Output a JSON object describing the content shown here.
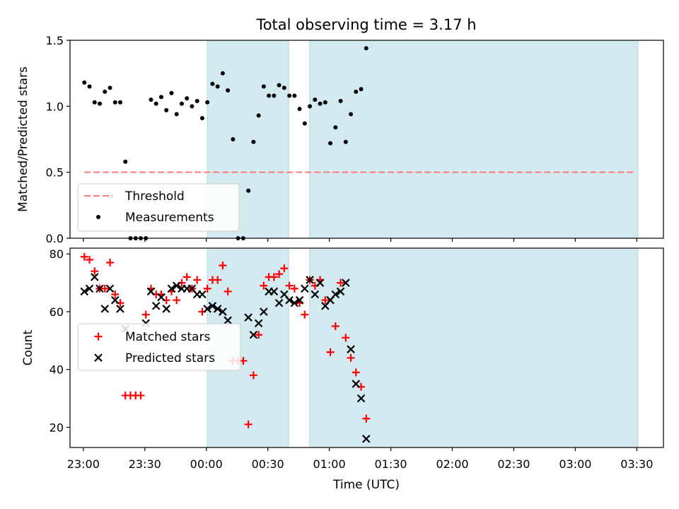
{
  "chart_data": {
    "type": "scatter",
    "title": "Total observing time = 3.17 h",
    "xlabel": "Time (UTC)",
    "x_tick_labels": [
      "23:00",
      "23:30",
      "00:00",
      "00:30",
      "01:00",
      "01:30",
      "02:00",
      "02:30",
      "03:00",
      "03:30"
    ],
    "x_tick_minutes": [
      0,
      30,
      60,
      90,
      120,
      150,
      180,
      210,
      240,
      270
    ],
    "xlim_minutes": [
      -6.5,
      283
    ],
    "shaded_intervals_minutes": [
      [
        60.5,
        100.2
      ],
      [
        110.4,
        270.5
      ]
    ],
    "panels": [
      {
        "name": "ratio",
        "ylabel": "Matched/Predicted stars",
        "ylim": [
          0,
          1.5
        ],
        "yticks": [
          0.0,
          0.5,
          1.0,
          1.5
        ],
        "ytick_labels": [
          "0.0",
          "0.5",
          "1.0",
          "1.5"
        ],
        "legend": {
          "location": "lower left",
          "entries": [
            "Threshold",
            "Measurements"
          ]
        },
        "threshold": {
          "label": "Threshold",
          "value": 0.5,
          "x_range_minutes": [
            0.5,
            269.5
          ],
          "color": "#ff7b7b"
        },
        "series": [
          {
            "name": "Measurements",
            "color": "#000000",
            "marker": "dot",
            "points": [
              [
                0.5,
                1.18
              ],
              [
                3.0,
                1.15
              ],
              [
                5.5,
                1.03
              ],
              [
                8.0,
                1.02
              ],
              [
                10.5,
                1.11
              ],
              [
                13.0,
                1.14
              ],
              [
                15.5,
                1.03
              ],
              [
                18.0,
                1.03
              ],
              [
                20.5,
                0.58
              ],
              [
                23.0,
                0.0
              ],
              [
                25.5,
                0.0
              ],
              [
                28.0,
                0.0
              ],
              [
                30.5,
                0.0
              ],
              [
                33.0,
                1.05
              ],
              [
                35.5,
                1.02
              ],
              [
                38.0,
                1.07
              ],
              [
                40.5,
                0.97
              ],
              [
                43.0,
                1.1
              ],
              [
                45.5,
                0.94
              ],
              [
                48.0,
                1.02
              ],
              [
                50.5,
                1.06
              ],
              [
                53.0,
                1.0
              ],
              [
                55.5,
                1.04
              ],
              [
                58.0,
                0.91
              ],
              [
                60.5,
                1.03
              ],
              [
                63.0,
                1.17
              ],
              [
                65.5,
                1.15
              ],
              [
                68.0,
                1.25
              ],
              [
                70.5,
                1.12
              ],
              [
                73.0,
                0.75
              ],
              [
                75.5,
                0.0
              ],
              [
                78.0,
                0.0
              ],
              [
                80.5,
                0.36
              ],
              [
                83.0,
                0.73
              ],
              [
                85.5,
                0.93
              ],
              [
                88.0,
                1.15
              ],
              [
                90.5,
                1.08
              ],
              [
                93.0,
                1.08
              ],
              [
                95.5,
                1.16
              ],
              [
                98.0,
                1.14
              ],
              [
                100.5,
                1.08
              ],
              [
                103.0,
                1.08
              ],
              [
                105.5,
                0.98
              ],
              [
                108.0,
                0.87
              ],
              [
                110.5,
                1.0
              ],
              [
                113.0,
                1.05
              ],
              [
                115.5,
                1.02
              ],
              [
                118.0,
                1.03
              ],
              [
                120.5,
                0.72
              ],
              [
                123.0,
                0.84
              ],
              [
                125.5,
                1.04
              ],
              [
                128.0,
                0.73
              ],
              [
                130.5,
                0.94
              ],
              [
                133.0,
                1.11
              ],
              [
                135.5,
                1.13
              ],
              [
                138.0,
                1.44
              ]
            ]
          }
        ]
      },
      {
        "name": "counts",
        "ylabel": "Count",
        "ylim": [
          13,
          82
        ],
        "yticks": [
          20,
          40,
          60,
          80
        ],
        "ytick_labels": [
          "20",
          "40",
          "60",
          "80"
        ],
        "legend": {
          "location": "center left",
          "entries": [
            "Matched stars",
            "Predicted stars"
          ]
        },
        "series": [
          {
            "name": "Matched stars",
            "color": "#ff0000",
            "marker": "plus",
            "points": [
              [
                0.5,
                79
              ],
              [
                3.0,
                78
              ],
              [
                5.5,
                74
              ],
              [
                8.0,
                68
              ],
              [
                10.5,
                68
              ],
              [
                13.0,
                77
              ],
              [
                15.5,
                66
              ],
              [
                18.0,
                63
              ],
              [
                20.5,
                31
              ],
              [
                23.0,
                31
              ],
              [
                25.5,
                31
              ],
              [
                28.0,
                31
              ],
              [
                30.5,
                59
              ],
              [
                33.0,
                68
              ],
              [
                35.5,
                66
              ],
              [
                38.0,
                66
              ],
              [
                40.5,
                64
              ],
              [
                43.0,
                67
              ],
              [
                45.5,
                64
              ],
              [
                48.0,
                70
              ],
              [
                50.5,
                72
              ],
              [
                53.0,
                68
              ],
              [
                55.5,
                71
              ],
              [
                58.0,
                60
              ],
              [
                60.5,
                68
              ],
              [
                63.0,
                71
              ],
              [
                65.5,
                71
              ],
              [
                68.0,
                76
              ],
              [
                70.5,
                67
              ],
              [
                73.0,
                43
              ],
              [
                75.5,
                43
              ],
              [
                78.0,
                43
              ],
              [
                80.5,
                21
              ],
              [
                83.0,
                38
              ],
              [
                85.5,
                52
              ],
              [
                88.0,
                69
              ],
              [
                90.5,
                72
              ],
              [
                93.0,
                72
              ],
              [
                95.5,
                73
              ],
              [
                98.0,
                75
              ],
              [
                100.5,
                69
              ],
              [
                103.0,
                68
              ],
              [
                105.5,
                63
              ],
              [
                108.0,
                59
              ],
              [
                110.5,
                71
              ],
              [
                113.0,
                69
              ],
              [
                115.5,
                71
              ],
              [
                118.0,
                64
              ],
              [
                120.5,
                46
              ],
              [
                123.0,
                55
              ],
              [
                125.5,
                70
              ],
              [
                128.0,
                51
              ],
              [
                130.5,
                44
              ],
              [
                133.0,
                39
              ],
              [
                135.5,
                34
              ],
              [
                138.0,
                23
              ]
            ]
          },
          {
            "name": "Predicted stars",
            "color": "#000000",
            "marker": "x",
            "points": [
              [
                0.5,
                67
              ],
              [
                3.0,
                68
              ],
              [
                5.5,
                72
              ],
              [
                8.0,
                68
              ],
              [
                10.5,
                61
              ],
              [
                13.0,
                68
              ],
              [
                15.5,
                64
              ],
              [
                18.0,
                61
              ],
              [
                20.5,
                54
              ],
              [
                30.5,
                56
              ],
              [
                33.0,
                67
              ],
              [
                35.5,
                62
              ],
              [
                38.0,
                65
              ],
              [
                40.5,
                61
              ],
              [
                43.0,
                68
              ],
              [
                45.5,
                69
              ],
              [
                48.0,
                68
              ],
              [
                50.5,
                68
              ],
              [
                53.0,
                68
              ],
              [
                55.5,
                66
              ],
              [
                58.0,
                66
              ],
              [
                60.5,
                61
              ],
              [
                63.0,
                62
              ],
              [
                65.5,
                61
              ],
              [
                68.0,
                60
              ],
              [
                70.5,
                57
              ],
              [
                80.5,
                58
              ],
              [
                83.0,
                52
              ],
              [
                85.5,
                56
              ],
              [
                88.0,
                60
              ],
              [
                90.5,
                67
              ],
              [
                93.0,
                67
              ],
              [
                95.5,
                63
              ],
              [
                98.0,
                66
              ],
              [
                100.5,
                64
              ],
              [
                103.0,
                63
              ],
              [
                105.5,
                64
              ],
              [
                108.0,
                68
              ],
              [
                110.5,
                71
              ],
              [
                113.0,
                66
              ],
              [
                115.5,
                70
              ],
              [
                118.0,
                62
              ],
              [
                120.5,
                64
              ],
              [
                123.0,
                66
              ],
              [
                125.5,
                67
              ],
              [
                128.0,
                70
              ],
              [
                130.5,
                47
              ],
              [
                133.0,
                35
              ],
              [
                135.5,
                30
              ],
              [
                138.0,
                16
              ]
            ]
          }
        ]
      }
    ]
  },
  "colors": {
    "shade": "#d3eaf0",
    "shade_edge": "#add8e6",
    "frame": "#000000"
  }
}
